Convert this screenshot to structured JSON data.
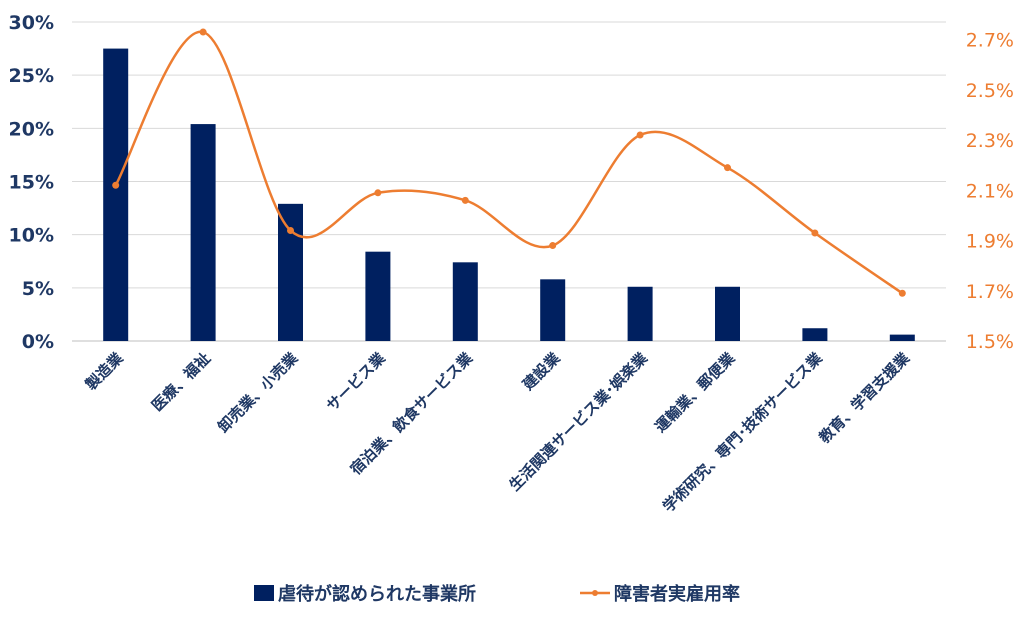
{
  "chart_data": {
    "type": "bar+line",
    "categories": [
      "製造業",
      "医療、福祉",
      "卸売業、小売業",
      "サービス業",
      "宿泊業、飲食サービス業",
      "建設業",
      "生活関連サービス業･娯楽業",
      "運輸業、郵便業",
      "学術研究、専門･技術サービス業",
      "教育、学習支援業"
    ],
    "series": [
      {
        "name": "虐待が認められた事業所",
        "type": "bar",
        "axis": "left",
        "color": "#002060",
        "values": [
          27.5,
          20.4,
          12.9,
          8.4,
          7.4,
          5.8,
          5.1,
          5.1,
          1.2,
          0.6
        ]
      },
      {
        "name": "障害者実雇用率",
        "type": "line",
        "smooth": true,
        "axis": "right",
        "color": "#ED7D31",
        "values": [
          2.12,
          2.73,
          1.94,
          2.09,
          2.06,
          1.88,
          2.32,
          2.19,
          1.93,
          1.69
        ]
      }
    ],
    "y_left": {
      "min": 0,
      "max": 30,
      "ticks": [
        "0%",
        "5%",
        "10%",
        "15%",
        "20%",
        "25%",
        "30%"
      ],
      "color": "#1F3864"
    },
    "y_right": {
      "min": 1.5,
      "max": 2.77,
      "ticks": [
        "1.5%",
        "1.7%",
        "1.9%",
        "2.1%",
        "2.3%",
        "2.5%",
        "2.7%"
      ],
      "tick_values": [
        1.5,
        1.7,
        1.9,
        2.1,
        2.3,
        2.5,
        2.7
      ],
      "color": "#ED7D31"
    },
    "grid": true,
    "legend_position": "bottom"
  }
}
